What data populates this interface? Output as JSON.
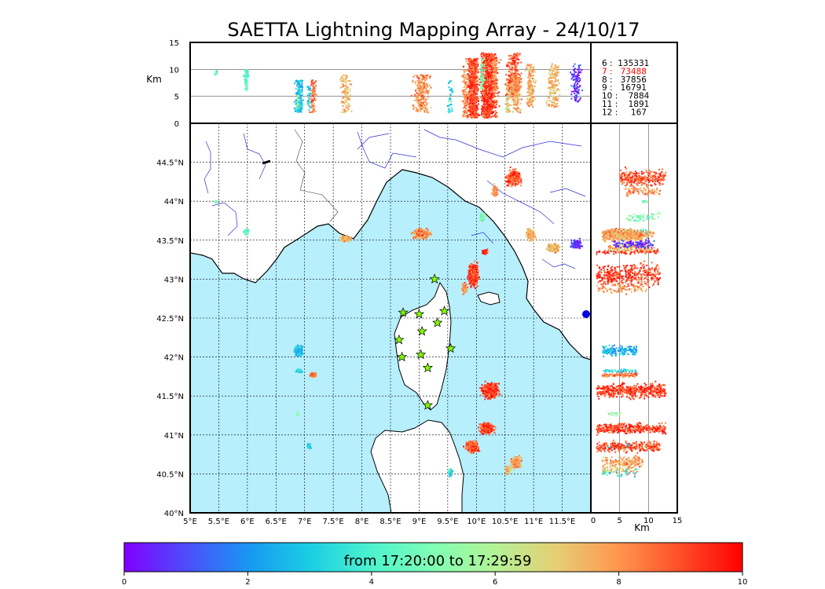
{
  "chart_data": {
    "type": "scatter",
    "title": "SAETTA Lightning Mapping Array - 24/10/17",
    "altitude_panel": {
      "ylabel": "Km",
      "ylim": [
        0,
        15
      ],
      "yticks": [
        "0",
        "5",
        "10",
        "15"
      ]
    },
    "map_panel": {
      "xlim": [
        5,
        12
      ],
      "ylim": [
        40,
        45
      ],
      "xticks": [
        5,
        5.5,
        6,
        6.5,
        7,
        7.5,
        8,
        8.5,
        9,
        9.5,
        10,
        10.5,
        11,
        11.5
      ],
      "xtick_labels": [
        "5°E",
        "5.5°E",
        "6°E",
        "6.5°E",
        "7°E",
        "7.5°E",
        "8°E",
        "8.5°E",
        "9°E",
        "9.5°E",
        "10°E",
        "10.5°E",
        "11°E",
        "11.5°E"
      ],
      "yticks": [
        40,
        40.5,
        41,
        41.5,
        42,
        42.5,
        43,
        43.5,
        44,
        44.5
      ],
      "ytick_labels": [
        "40°N",
        "40.5°N",
        "41°N",
        "41.5°N",
        "42°N",
        "42.5°N",
        "43°N",
        "43.5°N",
        "44°N",
        "44.5°N"
      ],
      "grid": true,
      "stations": [
        [
          9.27,
          43.0
        ],
        [
          8.72,
          42.57
        ],
        [
          9.0,
          42.55
        ],
        [
          9.44,
          42.59
        ],
        [
          9.32,
          42.44
        ],
        [
          8.65,
          42.22
        ],
        [
          9.05,
          42.33
        ],
        [
          9.55,
          42.11
        ],
        [
          8.7,
          42.0
        ],
        [
          9.03,
          42.03
        ],
        [
          9.15,
          41.86
        ],
        [
          9.15,
          41.38
        ]
      ]
    },
    "side_panel": {
      "xlabel": "Km",
      "xlim": [
        0,
        15
      ],
      "xticks": [
        "0",
        "5",
        "10",
        "15"
      ]
    },
    "station_counts": [
      {
        "label": "6 :  135331",
        "color": "#000000"
      },
      {
        "label": "7 :   73488",
        "color": "#ff0000"
      },
      {
        "label": "8 :   37856",
        "color": "#000000"
      },
      {
        "label": "9 :   16791",
        "color": "#000000"
      },
      {
        "label": "10 :    7884",
        "color": "#000000"
      },
      {
        "label": "11 :    1891",
        "color": "#000000"
      },
      {
        "label": "12 :     167",
        "color": "#000000"
      }
    ],
    "colorbar": {
      "caption": "from 17:20:00 to 17:29:59",
      "ticks": [
        "0",
        "2",
        "4",
        "6",
        "8",
        "10"
      ],
      "range": [
        0,
        10
      ]
    },
    "clusters": [
      {
        "lon": 5.98,
        "lat": 43.6,
        "rx": 0.06,
        "ry": 0.05,
        "alt": [
          6,
          10
        ],
        "t": 4.3,
        "n": 70
      },
      {
        "lon": 5.45,
        "lat": 44.0,
        "rx": 0.04,
        "ry": 0.02,
        "alt": [
          9,
          10
        ],
        "t": 4.6,
        "n": 20
      },
      {
        "lon": 6.9,
        "lat": 42.08,
        "rx": 0.09,
        "ry": 0.09,
        "alt": [
          2,
          8
        ],
        "t": 2.5,
        "n": 180
      },
      {
        "lon": 6.9,
        "lat": 41.82,
        "rx": 0.07,
        "ry": 0.03,
        "alt": [
          2,
          8
        ],
        "t": 3.5,
        "n": 60
      },
      {
        "lon": 7.15,
        "lat": 41.77,
        "rx": 0.07,
        "ry": 0.04,
        "alt": [
          2,
          8
        ],
        "t": 8.5,
        "n": 90
      },
      {
        "lon": 6.88,
        "lat": 41.28,
        "rx": 0.03,
        "ry": 0.04,
        "alt": [
          3,
          6
        ],
        "t": 5.5,
        "n": 15
      },
      {
        "lon": 7.08,
        "lat": 40.85,
        "rx": 0.05,
        "ry": 0.05,
        "alt": [
          2,
          7
        ],
        "t": 3.0,
        "n": 30
      },
      {
        "lon": 7.72,
        "lat": 43.52,
        "rx": 0.12,
        "ry": 0.05,
        "alt": [
          2,
          9
        ],
        "t": 7.5,
        "n": 110
      },
      {
        "lon": 9.05,
        "lat": 43.58,
        "rx": 0.2,
        "ry": 0.08,
        "alt": [
          2,
          9
        ],
        "t": 8.0,
        "n": 250
      },
      {
        "lon": 9.55,
        "lat": 40.52,
        "rx": 0.06,
        "ry": 0.07,
        "alt": [
          2,
          8
        ],
        "t": 3.2,
        "n": 40
      },
      {
        "lon": 9.95,
        "lat": 43.05,
        "rx": 0.12,
        "ry": 0.2,
        "alt": [
          1,
          12
        ],
        "t": 9.2,
        "n": 400
      },
      {
        "lon": 10.15,
        "lat": 43.35,
        "rx": 0.06,
        "ry": 0.04,
        "alt": [
          1,
          12
        ],
        "t": 9.5,
        "n": 80
      },
      {
        "lon": 10.25,
        "lat": 41.57,
        "rx": 0.2,
        "ry": 0.14,
        "alt": [
          1,
          13
        ],
        "t": 9.3,
        "n": 450
      },
      {
        "lon": 10.18,
        "lat": 41.08,
        "rx": 0.17,
        "ry": 0.09,
        "alt": [
          1,
          13
        ],
        "t": 9.2,
        "n": 350
      },
      {
        "lon": 9.92,
        "lat": 40.85,
        "rx": 0.15,
        "ry": 0.09,
        "alt": [
          1,
          12
        ],
        "t": 9.0,
        "n": 280
      },
      {
        "lon": 10.1,
        "lat": 43.8,
        "rx": 0.06,
        "ry": 0.08,
        "alt": [
          6,
          12
        ],
        "t": 5.0,
        "n": 60
      },
      {
        "lon": 10.33,
        "lat": 44.13,
        "rx": 0.07,
        "ry": 0.1,
        "alt": [
          6,
          12
        ],
        "t": 8.0,
        "n": 80
      },
      {
        "lon": 10.65,
        "lat": 44.3,
        "rx": 0.18,
        "ry": 0.14,
        "alt": [
          5,
          13
        ],
        "t": 9.0,
        "n": 260
      },
      {
        "lon": 10.95,
        "lat": 43.57,
        "rx": 0.1,
        "ry": 0.1,
        "alt": [
          3,
          11
        ],
        "t": 7.5,
        "n": 160
      },
      {
        "lon": 11.35,
        "lat": 43.4,
        "rx": 0.15,
        "ry": 0.07,
        "alt": [
          3,
          11
        ],
        "t": 7.5,
        "n": 170
      },
      {
        "lon": 11.75,
        "lat": 43.45,
        "rx": 0.14,
        "ry": 0.08,
        "alt": [
          4,
          11
        ],
        "t": 0.6,
        "n": 110
      },
      {
        "lon": 10.7,
        "lat": 40.65,
        "rx": 0.12,
        "ry": 0.1,
        "alt": [
          2,
          9
        ],
        "t": 7.8,
        "n": 170
      },
      {
        "lon": 10.55,
        "lat": 40.55,
        "rx": 0.06,
        "ry": 0.07,
        "alt": [
          2,
          8
        ],
        "t": 7.0,
        "n": 60
      },
      {
        "lon": 9.8,
        "lat": 42.88,
        "rx": 0.06,
        "ry": 0.09,
        "alt": [
          1,
          10
        ],
        "t": 8.0,
        "n": 90
      }
    ]
  }
}
